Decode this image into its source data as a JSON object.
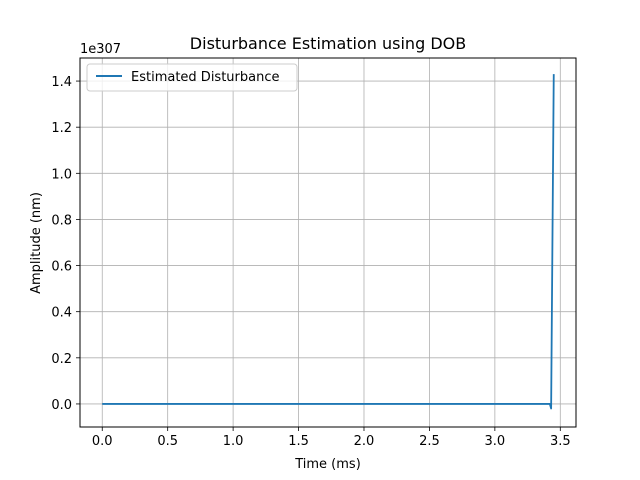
{
  "chart_data": {
    "type": "line",
    "title": "Disturbance Estimation using DOB",
    "xlabel": "Time (ms)",
    "ylabel": "Amplitude (nm)",
    "y_offset_label": "1e307",
    "xlim": [
      -0.17,
      3.62
    ],
    "ylim": [
      -0.1,
      1.5
    ],
    "x_ticks": [
      0.0,
      0.5,
      1.0,
      1.5,
      2.0,
      2.5,
      3.0,
      3.5
    ],
    "x_tick_labels": [
      "0.0",
      "0.5",
      "1.0",
      "1.5",
      "2.0",
      "2.5",
      "3.0",
      "3.5"
    ],
    "y_ticks": [
      0.0,
      0.2,
      0.4,
      0.6,
      0.8,
      1.0,
      1.2,
      1.4
    ],
    "y_tick_labels": [
      "0.0",
      "0.2",
      "0.4",
      "0.6",
      "0.8",
      "1.0",
      "1.2",
      "1.4"
    ],
    "grid": true,
    "legend_position": "top-left",
    "series": [
      {
        "name": "Estimated Disturbance",
        "color": "#1f77b4",
        "x": [
          0.0,
          0.5,
          1.0,
          1.5,
          2.0,
          2.5,
          3.0,
          3.42,
          3.43,
          3.45
        ],
        "y": [
          0.0,
          0.0,
          0.0,
          0.0,
          0.0,
          0.0,
          0.0,
          0.0,
          -0.02,
          1.43
        ]
      }
    ]
  }
}
